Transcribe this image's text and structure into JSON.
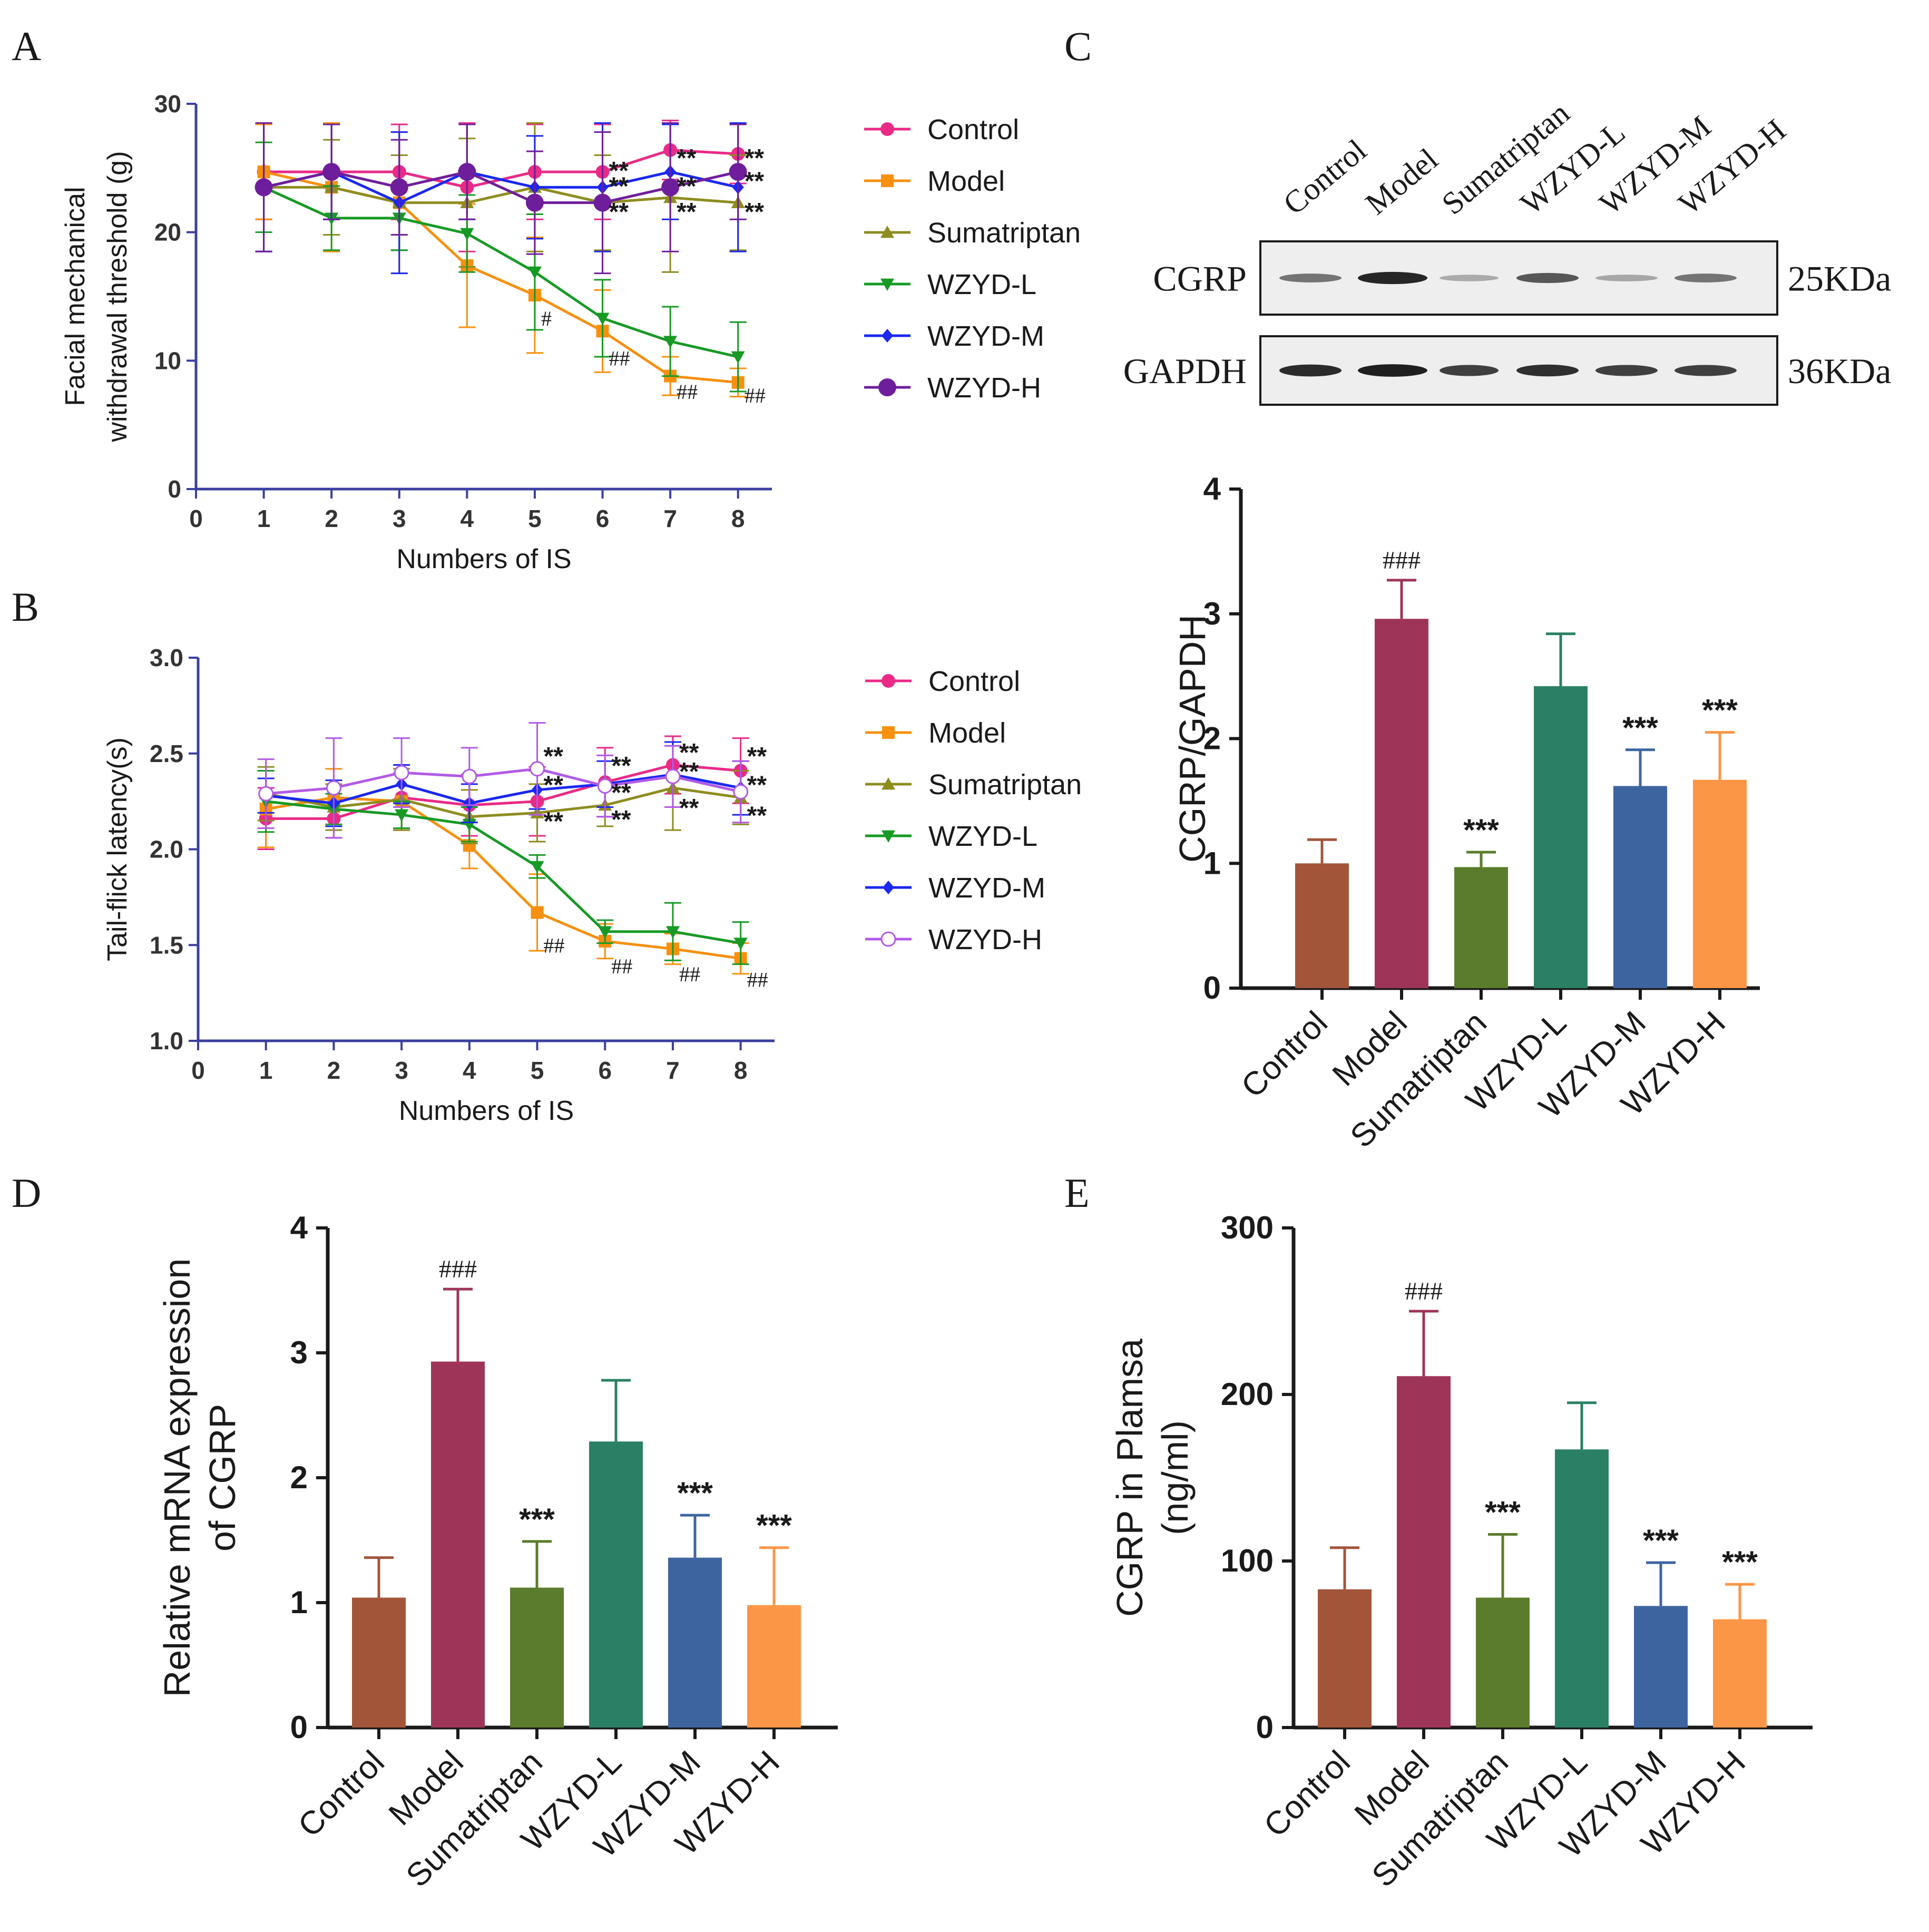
{
  "colors": {
    "Control": "#ea2a87",
    "Model": "#f7900f",
    "Sumatriptan": "#8e8c1f",
    "WZYD-L": "#179a25",
    "WZYD-M": "#1a28f2",
    "WZYD-H": "#6f1e9b",
    "WZYD-H_B": "#b25ae6",
    "axis": "#3a3fa0",
    "text": "#1a1a1a"
  },
  "bar_colors": [
    "#a3553a",
    "#9e3559",
    "#5b7c2c",
    "#2a8065",
    "#3e64a0",
    "#fb9646"
  ],
  "panels": {
    "A": {
      "letter": "A"
    },
    "B": {
      "letter": "B"
    },
    "C": {
      "letter": "C",
      "blot": {
        "lanes": [
          "Control",
          "Model",
          "Sumatriptan",
          "WZYD-L",
          "WZYD-M",
          "WZYD-H"
        ],
        "rows": [
          {
            "protein": "CGRP",
            "mw": "25KDa",
            "intensity": [
              0.55,
              0.95,
              0.28,
              0.7,
              0.3,
              0.55
            ]
          },
          {
            "protein": "GAPDH",
            "mw": "36KDa",
            "intensity": [
              0.92,
              0.98,
              0.82,
              0.9,
              0.82,
              0.82
            ]
          }
        ]
      }
    },
    "D": {
      "letter": "D"
    },
    "E": {
      "letter": "E"
    }
  },
  "chart_data": [
    {
      "id": "A",
      "type": "line",
      "xlabel": "Numbers of IS",
      "ylabel": [
        "Facial mechanical",
        "withdrawal threshold (g)"
      ],
      "xlim": [
        0,
        8.5
      ],
      "ylim": [
        0,
        30
      ],
      "xticks": [
        0,
        1,
        2,
        3,
        4,
        5,
        6,
        7,
        8
      ],
      "yticks": [
        0,
        10,
        20,
        30
      ],
      "x": [
        1,
        2,
        3,
        4,
        5,
        6,
        7,
        8
      ],
      "series": [
        {
          "name": "Control",
          "marker": "circle",
          "values": [
            24.7,
            24.7,
            24.7,
            23.5,
            24.7,
            24.7,
            26.4,
            26.1
          ],
          "err": [
            3.7,
            3.7,
            3.7,
            5.0,
            3.7,
            3.7,
            2.3,
            2.3
          ]
        },
        {
          "name": "Model",
          "marker": "square",
          "values": [
            24.7,
            23.5,
            22.3,
            17.4,
            15.1,
            12.3,
            8.8,
            8.3
          ],
          "err": [
            3.7,
            5.0,
            5.5,
            4.8,
            4.5,
            3.2,
            1.5,
            1.1
          ]
        },
        {
          "name": "Sumatriptan",
          "marker": "triangle",
          "values": [
            23.5,
            23.5,
            22.3,
            22.3,
            23.5,
            22.3,
            22.7,
            22.3
          ],
          "err": [
            5.0,
            3.7,
            3.7,
            5.0,
            5.0,
            3.7,
            5.8,
            3.7
          ]
        },
        {
          "name": "WZYD-L",
          "marker": "triangle-down",
          "values": [
            23.5,
            21.1,
            21.1,
            19.9,
            16.9,
            13.3,
            11.5,
            10.3
          ],
          "err": [
            3.5,
            2.5,
            2.5,
            3.0,
            4.5,
            3.0,
            2.7,
            2.7
          ]
        },
        {
          "name": "WZYD-M",
          "marker": "diamond",
          "values": [
            23.5,
            24.7,
            22.3,
            24.7,
            23.5,
            23.5,
            24.7,
            23.5
          ],
          "err": [
            5.0,
            3.7,
            5.5,
            3.7,
            4.0,
            5.0,
            3.7,
            5.0
          ]
        },
        {
          "name": "WZYD-H",
          "marker": "circle-filled",
          "values": [
            23.5,
            24.7,
            23.5,
            24.7,
            22.3,
            22.3,
            23.5,
            24.7
          ],
          "err": [
            5.0,
            3.7,
            3.7,
            3.7,
            4.0,
            5.5,
            5.0,
            3.7
          ]
        }
      ],
      "annotations": [
        {
          "x": 5,
          "y": 13.3,
          "text": "#"
        },
        {
          "x": 6,
          "y": 10.2,
          "text": "##"
        },
        {
          "x": 7,
          "y": 7.6,
          "text": "##"
        },
        {
          "x": 8,
          "y": 7.3,
          "text": "##"
        },
        {
          "x": 6,
          "y": 24.7,
          "text": "**"
        },
        {
          "x": 6,
          "y": 23.5,
          "text": "**"
        },
        {
          "x": 6,
          "y": 21.5,
          "text": "**"
        },
        {
          "x": 7,
          "y": 25.7,
          "text": "**"
        },
        {
          "x": 7,
          "y": 23.5,
          "text": "**"
        },
        {
          "x": 7,
          "y": 21.5,
          "text": "**"
        },
        {
          "x": 8,
          "y": 25.7,
          "text": "**"
        },
        {
          "x": 8,
          "y": 23.9,
          "text": "**"
        },
        {
          "x": 8,
          "y": 21.5,
          "text": "**"
        }
      ]
    },
    {
      "id": "B",
      "type": "line",
      "xlabel": "Numbers of IS",
      "ylabel": [
        "Tail-flick latency(s)"
      ],
      "xlim": [
        0,
        8.5
      ],
      "ylim": [
        1.0,
        3.0
      ],
      "xticks": [
        0,
        1,
        2,
        3,
        4,
        5,
        6,
        7,
        8
      ],
      "yticks": [
        1.0,
        1.5,
        2.0,
        2.5,
        3.0
      ],
      "x": [
        1,
        2,
        3,
        4,
        5,
        6,
        7,
        8
      ],
      "series": [
        {
          "name": "Control",
          "marker": "circle",
          "values": [
            2.16,
            2.16,
            2.27,
            2.23,
            2.25,
            2.35,
            2.44,
            2.41
          ],
          "err": [
            0.16,
            0.1,
            0.17,
            0.16,
            0.18,
            0.18,
            0.15,
            0.17
          ]
        },
        {
          "name": "Model",
          "marker": "square",
          "values": [
            2.21,
            2.27,
            2.25,
            2.02,
            1.67,
            1.52,
            1.48,
            1.43
          ],
          "err": [
            0.2,
            0.15,
            0.15,
            0.12,
            0.2,
            0.09,
            0.08,
            0.08
          ]
        },
        {
          "name": "Sumatriptan",
          "marker": "triangle",
          "values": [
            2.29,
            2.22,
            2.26,
            2.17,
            2.19,
            2.23,
            2.32,
            2.27
          ],
          "err": [
            0.14,
            0.12,
            0.16,
            0.14,
            0.15,
            0.11,
            0.22,
            0.14
          ]
        },
        {
          "name": "WZYD-L",
          "marker": "triangle-down",
          "values": [
            2.25,
            2.21,
            2.18,
            2.13,
            1.91,
            1.57,
            1.57,
            1.51
          ],
          "err": [
            0.16,
            0.08,
            0.07,
            0.09,
            0.06,
            0.06,
            0.15,
            0.11
          ]
        },
        {
          "name": "WZYD-M",
          "marker": "diamond",
          "values": [
            2.28,
            2.24,
            2.34,
            2.24,
            2.31,
            2.34,
            2.39,
            2.32
          ],
          "err": [
            0.09,
            0.12,
            0.1,
            0.1,
            0.1,
            0.12,
            0.17,
            0.14
          ]
        },
        {
          "name": "WZYD-H",
          "marker": "circle-open",
          "values": [
            2.29,
            2.32,
            2.4,
            2.38,
            2.42,
            2.33,
            2.38,
            2.3
          ],
          "err": [
            0.18,
            0.26,
            0.18,
            0.15,
            0.24,
            0.16,
            0.16,
            0.16
          ]
        }
      ],
      "annotations": [
        {
          "x": 5,
          "y": 2.48,
          "text": "**"
        },
        {
          "x": 5,
          "y": 2.33,
          "text": "**"
        },
        {
          "x": 5,
          "y": 2.14,
          "text": "**"
        },
        {
          "x": 6,
          "y": 2.43,
          "text": "**"
        },
        {
          "x": 6,
          "y": 2.29,
          "text": "**"
        },
        {
          "x": 6,
          "y": 2.15,
          "text": "**"
        },
        {
          "x": 7,
          "y": 2.5,
          "text": "**"
        },
        {
          "x": 7,
          "y": 2.4,
          "text": "**"
        },
        {
          "x": 7,
          "y": 2.21,
          "text": "**"
        },
        {
          "x": 8,
          "y": 2.48,
          "text": "**"
        },
        {
          "x": 8,
          "y": 2.33,
          "text": "**"
        },
        {
          "x": 8,
          "y": 2.17,
          "text": "**"
        },
        {
          "x": 5,
          "y": 1.5,
          "text": "##"
        },
        {
          "x": 6,
          "y": 1.39,
          "text": "##"
        },
        {
          "x": 7,
          "y": 1.35,
          "text": "##"
        },
        {
          "x": 8,
          "y": 1.32,
          "text": "##"
        }
      ]
    },
    {
      "id": "C",
      "type": "bar",
      "ylabel": [
        "CGRP/GAPDH"
      ],
      "ylim": [
        0,
        4
      ],
      "yticks": [
        0,
        1,
        2,
        3,
        4
      ],
      "categories": [
        "Control",
        "Model",
        "Sumatriptan",
        "WZYD-L",
        "WZYD-M",
        "WZYD-H"
      ],
      "values": [
        1.0,
        2.96,
        0.97,
        2.42,
        1.62,
        1.67
      ],
      "err": [
        0.19,
        0.31,
        0.12,
        0.42,
        0.29,
        0.38
      ],
      "sig": [
        "",
        "###",
        "***",
        "",
        "***",
        "***"
      ]
    },
    {
      "id": "D",
      "type": "bar",
      "ylabel": [
        "Relative mRNA expression",
        "of CGRP"
      ],
      "ylim": [
        0,
        4
      ],
      "yticks": [
        0,
        1,
        2,
        3,
        4
      ],
      "categories": [
        "Control",
        "Model",
        "Sumatriptan",
        "WZYD-L",
        "WZYD-M",
        "WZYD-H"
      ],
      "values": [
        1.04,
        2.93,
        1.12,
        2.29,
        1.36,
        0.98
      ],
      "err": [
        0.32,
        0.58,
        0.37,
        0.49,
        0.34,
        0.46
      ],
      "sig": [
        "",
        "###",
        "***",
        "",
        "***",
        "***"
      ]
    },
    {
      "id": "E",
      "type": "bar",
      "ylabel": [
        "CGRP in Plamsa",
        "(ng/ml)"
      ],
      "ylim": [
        0,
        300
      ],
      "yticks": [
        0,
        100,
        200,
        300
      ],
      "categories": [
        "Control",
        "Model",
        "Sumatriptan",
        "WZYD-L",
        "WZYD-M",
        "WZYD-H"
      ],
      "values": [
        83,
        211,
        78,
        167,
        73,
        65
      ],
      "err": [
        25,
        39,
        38,
        28,
        26,
        21
      ],
      "sig": [
        "",
        "###",
        "***",
        "",
        "***",
        "***"
      ]
    }
  ]
}
